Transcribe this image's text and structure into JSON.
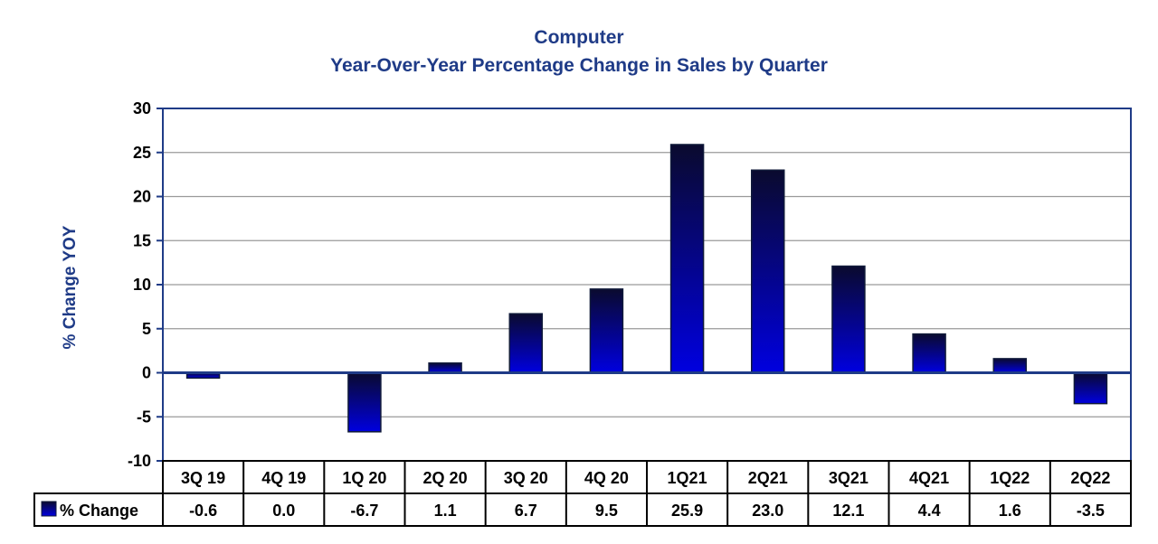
{
  "chart_data": {
    "type": "bar",
    "title": "Computer",
    "subtitle": "Year-Over-Year Percentage Change in Sales by Quarter",
    "ylabel": "% Change YOY",
    "xlabel": "",
    "ylim": [
      -10,
      30
    ],
    "yticks": [
      "30",
      "25",
      "20",
      "15",
      "10",
      "5",
      "0",
      "-5",
      "-10"
    ],
    "categories": [
      "3Q 19",
      "4Q 19",
      "1Q 20",
      "2Q 20",
      "3Q 20",
      "4Q 20",
      "1Q21",
      "2Q21",
      "3Q21",
      "4Q21",
      "1Q22",
      "2Q22"
    ],
    "series": [
      {
        "name": "% Change",
        "values": [
          -0.6,
          0.0,
          -6.7,
          1.1,
          6.7,
          9.5,
          25.9,
          23.0,
          12.1,
          4.4,
          1.6,
          -3.5
        ],
        "labels": [
          "-0.6",
          "0.0",
          "-6.7",
          "1.1",
          "6.7",
          "9.5",
          "25.9",
          "23.0",
          "12.1",
          "4.4",
          "1.6",
          "-3.5"
        ]
      }
    ],
    "grid": true,
    "legend": "data-table-left",
    "colors": {
      "bar_top": "#0a0a2e",
      "bar_bottom": "#0000e0",
      "title": "#1f3b87",
      "axis_frame": "#1f3b87",
      "grid": "#9a9a9a"
    }
  }
}
